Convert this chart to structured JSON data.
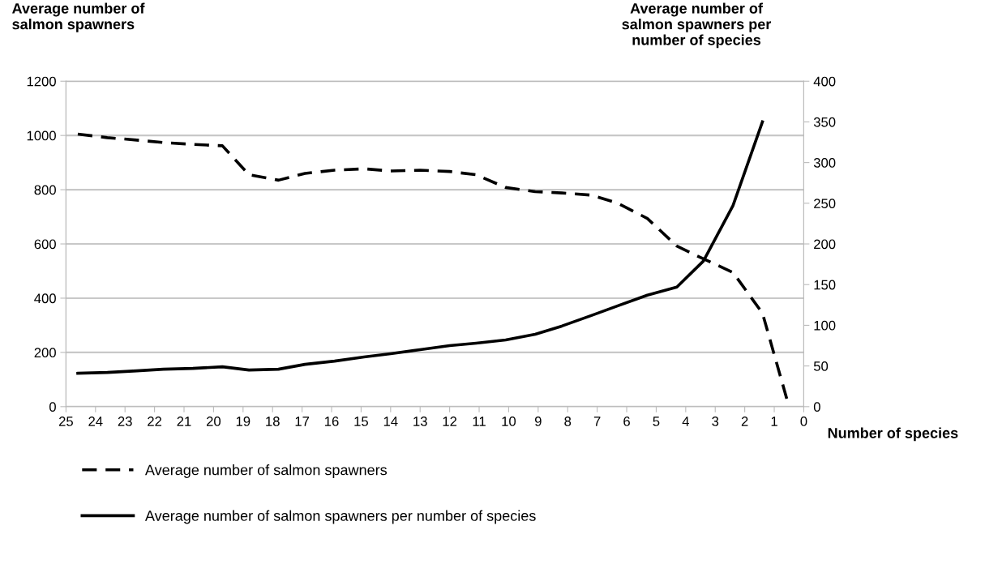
{
  "chart_data": {
    "type": "line",
    "ylabel": "Average number of\nsalmon spawners",
    "y2label": "Average number of\nsalmon spawners per\nnumber of species",
    "xlabel": "Number of species",
    "xlim": [
      25,
      0
    ],
    "xticks": [
      25,
      24,
      23,
      22,
      21,
      20,
      19,
      18,
      17,
      16,
      15,
      14,
      13,
      12,
      11,
      10,
      9,
      8,
      7,
      6,
      5,
      4,
      3,
      2,
      1,
      0
    ],
    "ylim": [
      0,
      1200
    ],
    "yticks": [
      0,
      200,
      400,
      600,
      800,
      1000,
      1200
    ],
    "y2lim": [
      0,
      400
    ],
    "y2ticks": [
      0,
      50,
      100,
      150,
      200,
      250,
      300,
      350,
      400
    ],
    "grid": "y",
    "legend": "bottom left",
    "marker": "none",
    "series": [
      {
        "name": "Average number of salmon spawners",
        "color": "#000000",
        "line_style": "dashed",
        "x": [
          24.6,
          23.6,
          22.6,
          21.7,
          20.7,
          19.7,
          18.8,
          17.8,
          16.9,
          15.9,
          14.9,
          14.0,
          13.0,
          12.0,
          11.1,
          10.1,
          9.1,
          8.2,
          7.2,
          6.3,
          5.3,
          4.3,
          3.4,
          2.4,
          1.4,
          0.5
        ],
        "values": [
          1005,
          992,
          983,
          974,
          967,
          962,
          855,
          835,
          860,
          872,
          877,
          869,
          872,
          867,
          855,
          808,
          793,
          788,
          780,
          750,
          694,
          592,
          545,
          495,
          345,
          0
        ]
      },
      {
        "name": "Average number of salmon spawners per number of species",
        "color": "#000000",
        "line_style": "solid",
        "axis": "y2",
        "x": [
          24.6,
          23.6,
          22.6,
          21.7,
          20.7,
          19.7,
          18.8,
          17.8,
          16.9,
          15.9,
          14.9,
          14.0,
          13.0,
          12.0,
          11.1,
          10.1,
          9.1,
          8.2,
          7.2,
          6.3,
          5.3,
          4.3,
          3.4,
          2.4,
          1.4
        ],
        "values": [
          41,
          42,
          44,
          46,
          47,
          49,
          45,
          46,
          52,
          56,
          61,
          65,
          70,
          75,
          78,
          82,
          89,
          99,
          112,
          124,
          137,
          147,
          179,
          247,
          350
        ]
      }
    ]
  }
}
